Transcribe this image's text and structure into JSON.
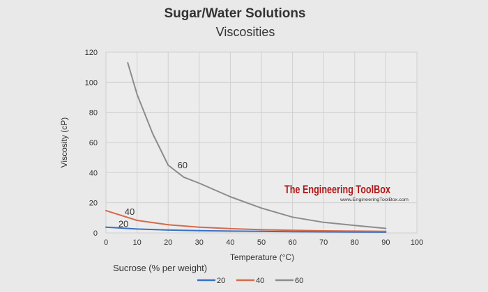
{
  "chart_data": {
    "type": "line",
    "title": "Sugar/Water Solutions",
    "subtitle": "Viscosities",
    "xlabel": "Temperature (°C)",
    "ylabel": "Viscosity (cP)",
    "xlim": [
      0,
      100
    ],
    "ylim": [
      0,
      120
    ],
    "x_ticks": [
      "0",
      "10",
      "20",
      "30",
      "40",
      "50",
      "60",
      "70",
      "80",
      "90",
      "100"
    ],
    "y_ticks": [
      "0",
      "20",
      "40",
      "60",
      "80",
      "100",
      "120"
    ],
    "grid": true,
    "legend_title": "Sucrose (% per weight)",
    "legend_position": "bottom",
    "series": [
      {
        "name": "20",
        "color": "#3a6fc4",
        "x": [
          0,
          10,
          20,
          30,
          40,
          50,
          60,
          70,
          80,
          90
        ],
        "values": [
          3.8,
          2.6,
          1.9,
          1.5,
          1.2,
          1.0,
          0.8,
          0.7,
          0.6,
          0.5
        ]
      },
      {
        "name": "40",
        "color": "#d46a4a",
        "x": [
          0,
          10,
          20,
          30,
          40,
          50,
          60,
          70,
          80,
          90
        ],
        "values": [
          14.8,
          8.3,
          5.4,
          3.8,
          2.8,
          2.1,
          1.7,
          1.4,
          1.2,
          1.0
        ]
      },
      {
        "name": "60",
        "color": "#8c8c8c",
        "x": [
          7,
          10,
          15,
          20,
          25,
          30,
          40,
          50,
          60,
          70,
          80,
          90
        ],
        "values": [
          113,
          92,
          66,
          45,
          37,
          33,
          24,
          16.5,
          10.5,
          7,
          5,
          3
        ]
      }
    ],
    "annotations": [
      {
        "text": "20",
        "x": 4,
        "y": 4
      },
      {
        "text": "40",
        "x": 6,
        "y": 12
      },
      {
        "text": "60",
        "x": 23,
        "y": 43
      }
    ]
  },
  "watermark": {
    "brand": "The Engineering ToolBox",
    "url": "www.EngineeringToolBox.com",
    "color": "#b01818"
  }
}
